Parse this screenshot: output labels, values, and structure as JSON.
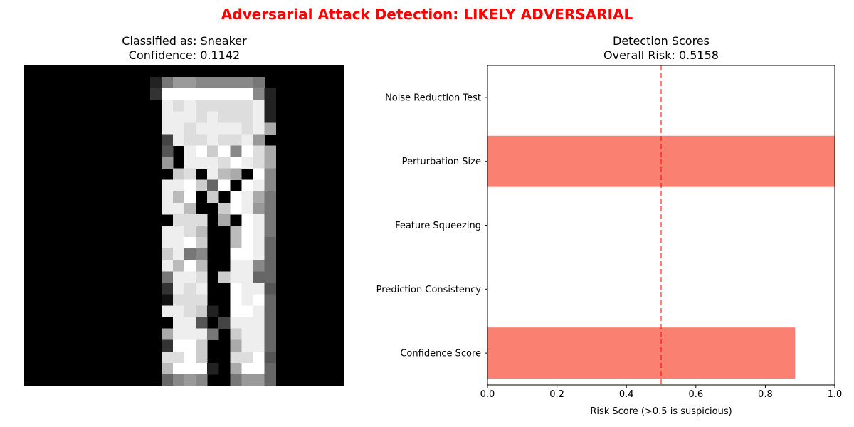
{
  "suptitle": "Adversarial Attack Detection: LIKELY ADVERSARIAL",
  "left_panel": {
    "title_line1": "Classified as: Sneaker",
    "title_line2": "Confidence: 0.1142",
    "image": {
      "rows": 28,
      "cols": 28,
      "pixels": [
        "0000000000000000000000000000",
        "0000000000027998888870000000",
        "000000000003ffffffff82000000",
        "000000000000ededdddde2000000",
        "000000000000eeededdde2000000",
        "000000000000eedeeeedea000000",
        "0000000000004eddedde90000000",
        "00000000000050efcf8fda000000",
        "00000000000090eeedfeda000000",
        "0000000000000cd0eba0f8000000",
        "000000000000eefc6f0fe8000000",
        "000000000000ebf0c0fea7000000",
        "000000000000eeb00cfe97000000",
        "0000000000000ddd0a0fe7000000",
        "000000000000eedb00bfe7000000",
        "000000000000eefc00bfe6000000",
        "000000000000ce7800ffe6000000",
        "000000000000ebfb00ee86000000",
        "0000000000007eed0cee66000000",
        "0000000000003ede00fee5000000",
        "0000000000001ddd00fef6000000",
        "000000000000eedc20ffe6000000",
        "0000000000000ee504eee6000000",
        "000000000000aeee70cee6000000",
        "0000000000003ffc00aee6000000",
        "000000000000ddfc00ddf5000000",
        "000000000000bfff20aff6000000",
        "0000000000006898007996000000"
      ]
    }
  },
  "right_panel": {
    "title_line1": "Detection Scores",
    "title_line2": "Overall Risk: 0.5158"
  },
  "chart_data": {
    "type": "bar",
    "orientation": "horizontal",
    "categories": [
      "Confidence Score",
      "Prediction Consistency",
      "Feature Squeezing",
      "Perturbation Size",
      "Noise Reduction Test"
    ],
    "values": [
      0.8858,
      0.0,
      0.0,
      1.0,
      0.0
    ],
    "bar_color": "#fa8072",
    "xlabel": "Risk Score (>0.5 is suspicious)",
    "xlim": [
      0,
      1
    ],
    "xticks": [
      "0.0",
      "0.2",
      "0.4",
      "0.6",
      "0.8",
      "1.0"
    ],
    "threshold": {
      "value": 0.5,
      "color": "#ff0000",
      "style": "dashed"
    },
    "grid": false
  }
}
